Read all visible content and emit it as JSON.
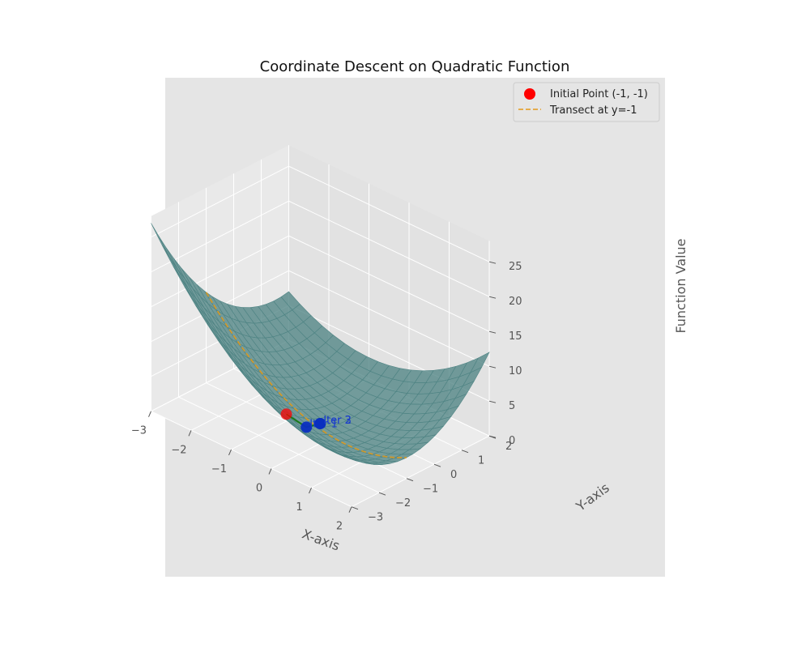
{
  "chart_data": {
    "type": "surface3d",
    "title": "Coordinate Descent on Quadratic Function",
    "xlabel": "X-axis",
    "ylabel": "Y-axis",
    "zlabel": "Function Value",
    "xlim": [
      -3,
      2
    ],
    "ylim": [
      -3,
      2
    ],
    "zlim": [
      0,
      25
    ],
    "xticks": [
      -3,
      -2,
      -1,
      0,
      1,
      2
    ],
    "yticks": [
      -3,
      -2,
      -1,
      0,
      1,
      2
    ],
    "zticks": [
      0,
      5,
      10,
      15,
      20,
      25
    ],
    "surface_color": "#4f8484",
    "transect": {
      "label": "Transect at y=-1",
      "y": -1,
      "color": "#e39a19"
    },
    "initial_point": {
      "label": "Initial Point (-1, -1)",
      "x": -1,
      "y": -1,
      "z": 1,
      "color": "#ff0000"
    },
    "path_color": "#1a7a1a",
    "iterations": [
      {
        "label": "Iter 1",
        "x": -0.5,
        "y": -1,
        "z": 0.5
      },
      {
        "label": "Iter 2",
        "x": -0.5,
        "y": -0.5,
        "z": 0.0
      },
      {
        "label": "Iter 3",
        "x": -0.5,
        "y": -0.5,
        "z": 0.0
      }
    ],
    "grid": true,
    "legend": "top-right"
  }
}
